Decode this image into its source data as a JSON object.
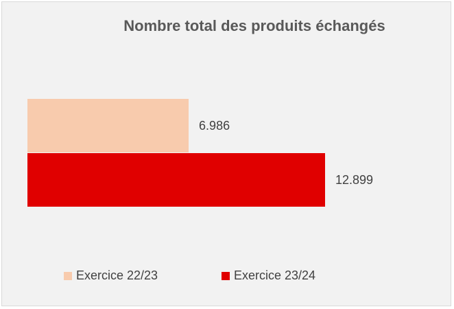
{
  "chart_data": {
    "type": "bar",
    "orientation": "horizontal",
    "title": "Nombre total des produits échangés",
    "series": [
      {
        "name": "Exercice 22/23",
        "values": [
          6986
        ],
        "label": "6.986",
        "color": "#f8cbad"
      },
      {
        "name": "Exercice 23/24",
        "values": [
          12899
        ],
        "label": "12.899",
        "color": "#e00000"
      }
    ],
    "legend_position": "bottom",
    "grid": false
  }
}
